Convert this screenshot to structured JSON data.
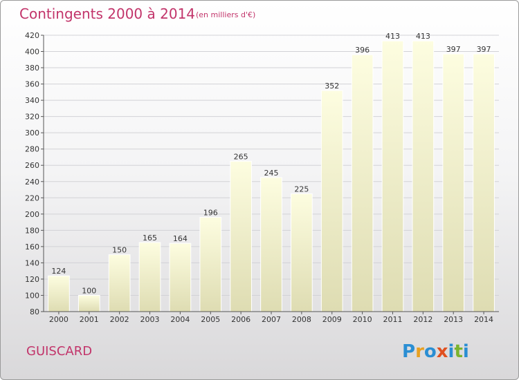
{
  "chart_data": {
    "type": "bar",
    "title": "Contingents 2000 à 2014",
    "subtitle": "(en milliers d'€)",
    "categories": [
      "2000",
      "2001",
      "2002",
      "2003",
      "2004",
      "2005",
      "2006",
      "2007",
      "2008",
      "2009",
      "2010",
      "2011",
      "2012",
      "2013",
      "2014"
    ],
    "values": [
      124,
      100,
      150,
      165,
      164,
      196,
      265,
      245,
      225,
      352,
      396,
      413,
      413,
      397,
      397
    ],
    "ylim": [
      80,
      420
    ],
    "yticks": [
      80,
      100,
      120,
      140,
      160,
      180,
      200,
      220,
      240,
      260,
      280,
      300,
      320,
      340,
      360,
      380,
      400,
      420
    ],
    "grid": true,
    "bar_color": "#fbfbd2",
    "label_color": "#c2346a"
  },
  "commune": "GUISCARD",
  "logo": "Proxiti"
}
